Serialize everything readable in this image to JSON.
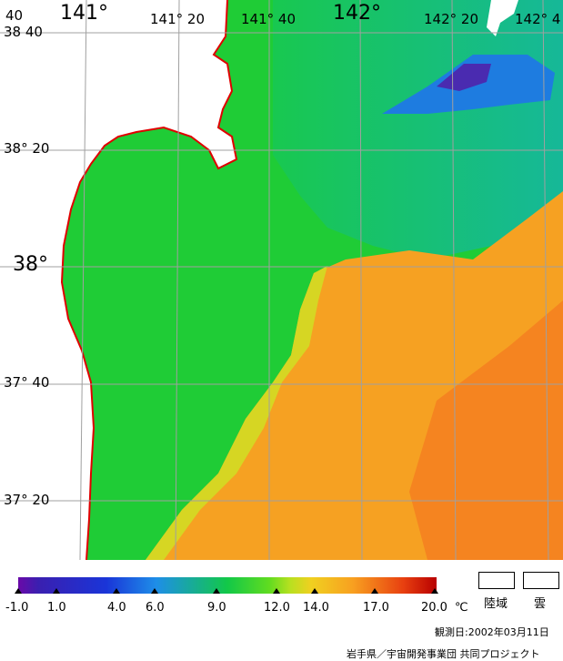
{
  "map": {
    "lon_labels": [
      "141°",
      "141° 20",
      "141° 40",
      "142°",
      "142° 20",
      "142° 4"
    ],
    "lat_labels": [
      "38 40",
      "38° 20",
      "38°",
      "37° 40",
      "37° 20"
    ],
    "corner_label": "40"
  },
  "legend": {
    "ticks": [
      "-1.0",
      "1.0",
      "4.0",
      "6.0",
      "9.0",
      "12.0",
      "14.0",
      "17.0",
      "20.0"
    ],
    "unit": "℃",
    "land_label": "陸域",
    "cloud_label": "雲"
  },
  "footer": {
    "observation": "観測日:2002年03月11日",
    "credit": "岩手県／宇宙開発事業団 共同プロジェクト"
  },
  "colors": {
    "coast": "#e00000",
    "grid": "#a0a0a0",
    "land": "#ffffff"
  }
}
